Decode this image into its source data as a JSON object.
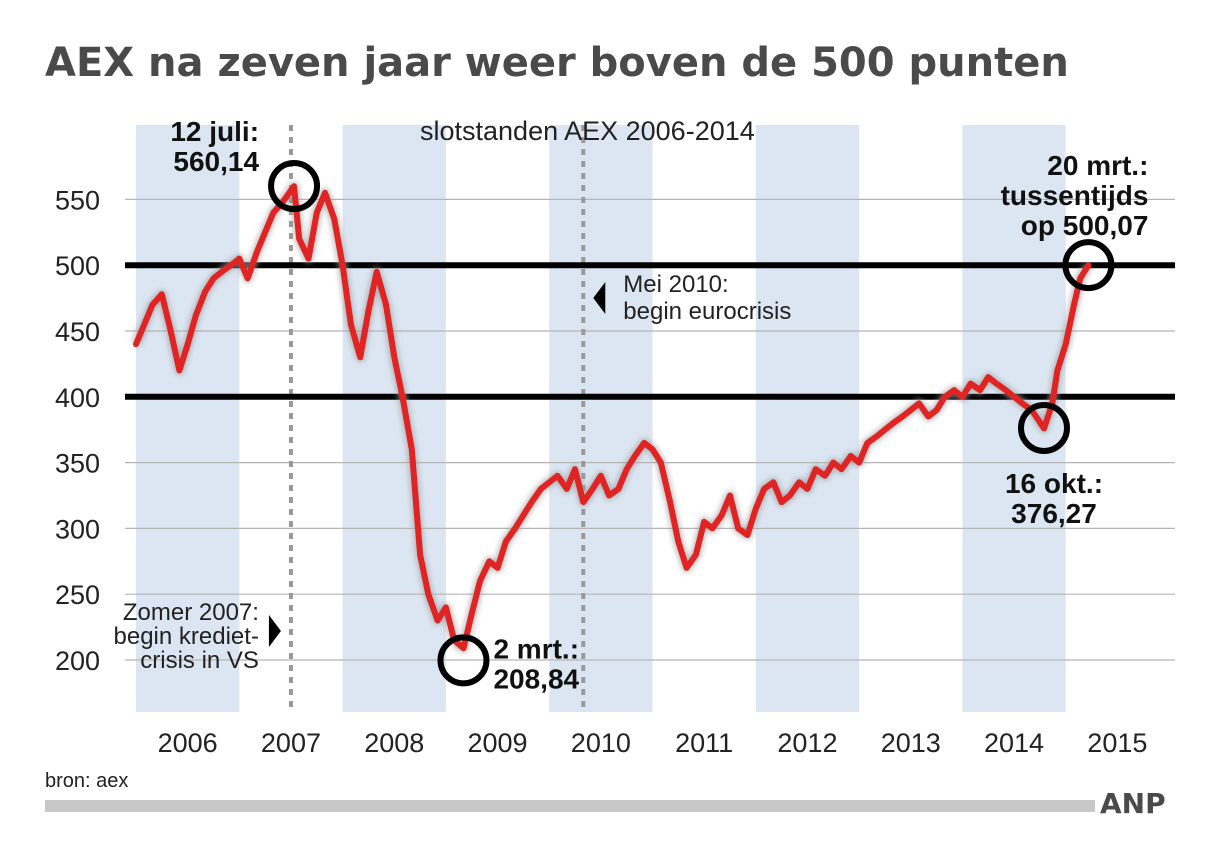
{
  "chart_data": {
    "type": "line",
    "title": "AEX na zeven jaar weer boven de 500 punten",
    "subtitle": "slotstanden AEX 2006-2014",
    "source": "bron: aex",
    "logo": "ANP",
    "x_labels": [
      "2006",
      "2007",
      "2008",
      "2009",
      "2010",
      "2011",
      "2012",
      "2013",
      "2014",
      "2015"
    ],
    "y_ticks": [
      200,
      250,
      300,
      350,
      400,
      450,
      500,
      550
    ],
    "ylim": [
      170,
      575
    ],
    "xlim": [
      2005.95,
      2015.2
    ],
    "grid": true,
    "shaded_years": [
      2006,
      2008,
      2010,
      2012,
      2014
    ],
    "reference_lines": [
      400,
      500
    ],
    "line_color": "#e02424",
    "shade_color": "#dce6f2",
    "series": [
      {
        "x": [
          2006.0,
          2006.08,
          2006.16,
          2006.25,
          2006.33,
          2006.42,
          2006.5,
          2006.58,
          2006.67,
          2006.75,
          2006.83,
          2006.92,
          2007.0,
          2007.08,
          2007.17,
          2007.25,
          2007.33,
          2007.42,
          2007.53,
          2007.58,
          2007.67,
          2007.75,
          2007.83,
          2007.92,
          2008.0,
          2008.08,
          2008.17,
          2008.25,
          2008.33,
          2008.42,
          2008.5,
          2008.58,
          2008.67,
          2008.75,
          2008.83,
          2008.92,
          2009.0,
          2009.08,
          2009.17,
          2009.25,
          2009.33,
          2009.42,
          2009.5,
          2009.58,
          2009.67,
          2009.75,
          2009.83,
          2009.92,
          2010.0,
          2010.08,
          2010.17,
          2010.25,
          2010.33,
          2010.42,
          2010.5,
          2010.58,
          2010.67,
          2010.75,
          2010.83,
          2010.92,
          2011.0,
          2011.08,
          2011.17,
          2011.25,
          2011.33,
          2011.42,
          2011.5,
          2011.58,
          2011.67,
          2011.75,
          2011.83,
          2011.92,
          2012.0,
          2012.08,
          2012.17,
          2012.25,
          2012.33,
          2012.42,
          2012.5,
          2012.58,
          2012.67,
          2012.75,
          2012.83,
          2012.92,
          2013.0,
          2013.08,
          2013.17,
          2013.25,
          2013.33,
          2013.42,
          2013.5,
          2013.58,
          2013.67,
          2013.75,
          2013.83,
          2013.92,
          2014.0,
          2014.08,
          2014.17,
          2014.25,
          2014.33,
          2014.42,
          2014.5,
          2014.58,
          2014.67,
          2014.79,
          2014.87,
          2014.92,
          2015.0,
          2015.08,
          2015.14,
          2015.22
        ],
        "y": [
          440,
          455,
          470,
          478,
          452,
          420,
          440,
          462,
          480,
          490,
          495,
          500,
          505,
          490,
          510,
          525,
          540,
          548,
          560,
          520,
          505,
          540,
          555,
          535,
          500,
          455,
          430,
          465,
          495,
          470,
          430,
          400,
          360,
          280,
          250,
          230,
          240,
          215,
          209,
          235,
          260,
          275,
          270,
          290,
          300,
          310,
          320,
          330,
          335,
          340,
          330,
          345,
          320,
          330,
          340,
          325,
          330,
          345,
          355,
          365,
          360,
          350,
          320,
          290,
          270,
          280,
          305,
          300,
          310,
          325,
          300,
          295,
          315,
          330,
          335,
          320,
          325,
          335,
          330,
          345,
          340,
          350,
          345,
          355,
          350,
          365,
          370,
          375,
          380,
          385,
          390,
          395,
          385,
          390,
          400,
          405,
          400,
          410,
          405,
          415,
          410,
          405,
          400,
          395,
          390,
          376,
          395,
          420,
          440,
          470,
          490,
          500
        ]
      }
    ],
    "annotations": [
      {
        "lines": [
          "12 juli:",
          "560,14"
        ],
        "x": 2007.53,
        "y": 560.14
      },
      {
        "lines": [
          "2 mrt.:",
          "208,84"
        ],
        "x": 2009.17,
        "y": 208.84
      },
      {
        "lines": [
          "16 okt.:",
          "376,27"
        ],
        "x": 2014.79,
        "y": 376.27
      },
      {
        "lines": [
          "20 mrt.:",
          "tussentijds",
          "op 500,07"
        ],
        "x": 2015.22,
        "y": 500.07
      }
    ],
    "events": [
      {
        "lines": [
          "Zomer 2007:",
          "begin krediet-",
          "crisis in VS"
        ],
        "x": 2007.5
      },
      {
        "lines": [
          "Mei 2010:",
          "begin eurocrisis"
        ],
        "x": 2010.33
      }
    ]
  }
}
